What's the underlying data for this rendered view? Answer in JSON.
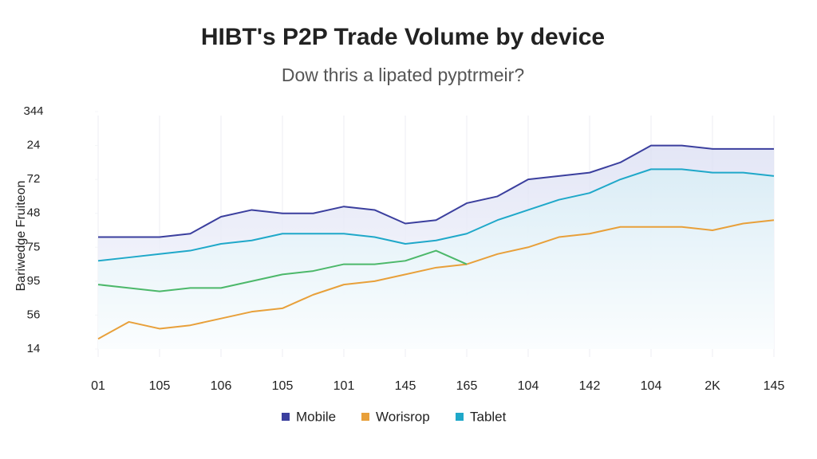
{
  "chart_data": {
    "type": "line",
    "title": "HIBT's P2P Trade Volume by device",
    "subtitle": "Dow thris a lipated pyptrmeir?",
    "y_label": "Bariwedge Fruiteon",
    "categories": [
      "01",
      null,
      "105",
      null,
      "106",
      null,
      "105",
      null,
      "101",
      null,
      "145",
      null,
      "165",
      null,
      "104",
      null,
      "142",
      null,
      "104",
      null,
      "2K",
      null,
      "145"
    ],
    "ylim": [
      0,
      7
    ],
    "yticks": [
      {
        "value": 0,
        "label": "14"
      },
      {
        "value": 1,
        "label": "56"
      },
      {
        "value": 2,
        "label": "95"
      },
      {
        "value": 3,
        "label": "75"
      },
      {
        "value": 4,
        "label": "48"
      },
      {
        "value": 5,
        "label": "72"
      },
      {
        "value": 6,
        "label": "24"
      },
      {
        "value": 7,
        "label": "344"
      }
    ],
    "grid": true,
    "legend": "bottom",
    "series": [
      {
        "name": "Mobile",
        "color": "#3b3f9e",
        "fill": "#d9ddf3",
        "values": [
          3.3,
          3.3,
          3.3,
          3.4,
          3.9,
          4.1,
          4.0,
          4.0,
          4.2,
          4.1,
          3.7,
          3.8,
          4.3,
          4.5,
          5.0,
          5.1,
          5.2,
          5.5,
          6.0,
          6.0,
          5.9,
          5.9,
          5.9
        ]
      },
      {
        "name": "Worisrop",
        "color": "#e8a03a",
        "values": [
          0.3,
          0.8,
          0.6,
          0.7,
          0.9,
          1.1,
          1.2,
          1.6,
          1.9,
          2.0,
          2.2,
          2.4,
          2.5,
          2.8,
          3.0,
          3.3,
          3.4,
          3.6,
          3.6,
          3.6,
          3.5,
          3.7,
          3.8
        ]
      },
      {
        "name": "Tablet",
        "color": "#1fa8c9",
        "fill": "#d7eef6",
        "values": [
          2.6,
          2.7,
          2.8,
          2.9,
          3.1,
          3.2,
          3.4,
          3.4,
          3.4,
          3.3,
          3.1,
          3.2,
          3.4,
          3.8,
          4.1,
          4.4,
          4.6,
          5.0,
          5.3,
          5.3,
          5.2,
          5.2,
          5.1
        ]
      },
      {
        "color": "#4cb86a",
        "values": [
          1.9,
          1.8,
          1.7,
          1.8,
          1.8,
          2.0,
          2.2,
          2.3,
          2.5,
          2.5,
          2.6,
          2.9,
          2.5,
          null,
          null,
          null,
          null,
          null,
          null,
          null,
          null,
          null,
          null
        ]
      }
    ]
  }
}
